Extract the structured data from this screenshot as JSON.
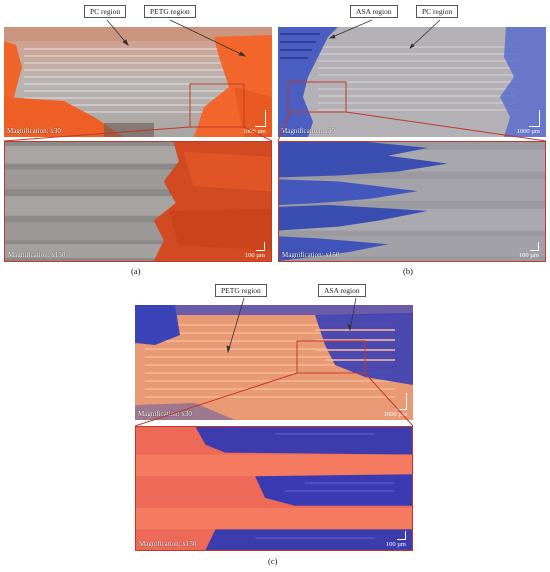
{
  "panel_a": {
    "callouts": [
      "PC region",
      "PETG region"
    ],
    "top_magnification": "Magnification: x30",
    "top_scale": "1000 µm",
    "bottom_magnification": "Magnification: x150",
    "bottom_scale": "100 µm",
    "caption": "(a)",
    "colors": {
      "pc": "#b7b4b4",
      "petg": "#f05a1e"
    }
  },
  "panel_b": {
    "callouts": [
      "ASA region",
      "PC region"
    ],
    "top_magnification": "Magnification: x30",
    "top_scale": "1000 µm",
    "bottom_magnification": "Magnification: x150",
    "bottom_scale": "100 µm",
    "caption": "(b)",
    "colors": {
      "pc": "#b6b3b8",
      "asa": "#4b60c8"
    }
  },
  "panel_c": {
    "callouts": [
      "PETG region",
      "ASA region"
    ],
    "top_magnification": "Magnification: x30",
    "top_scale": "1000 µm",
    "bottom_magnification": "Magnification: x150",
    "bottom_scale": "100 µm",
    "caption": "(c)",
    "colors": {
      "petg": "#f47a5a",
      "asa": "#3b3db8"
    }
  }
}
